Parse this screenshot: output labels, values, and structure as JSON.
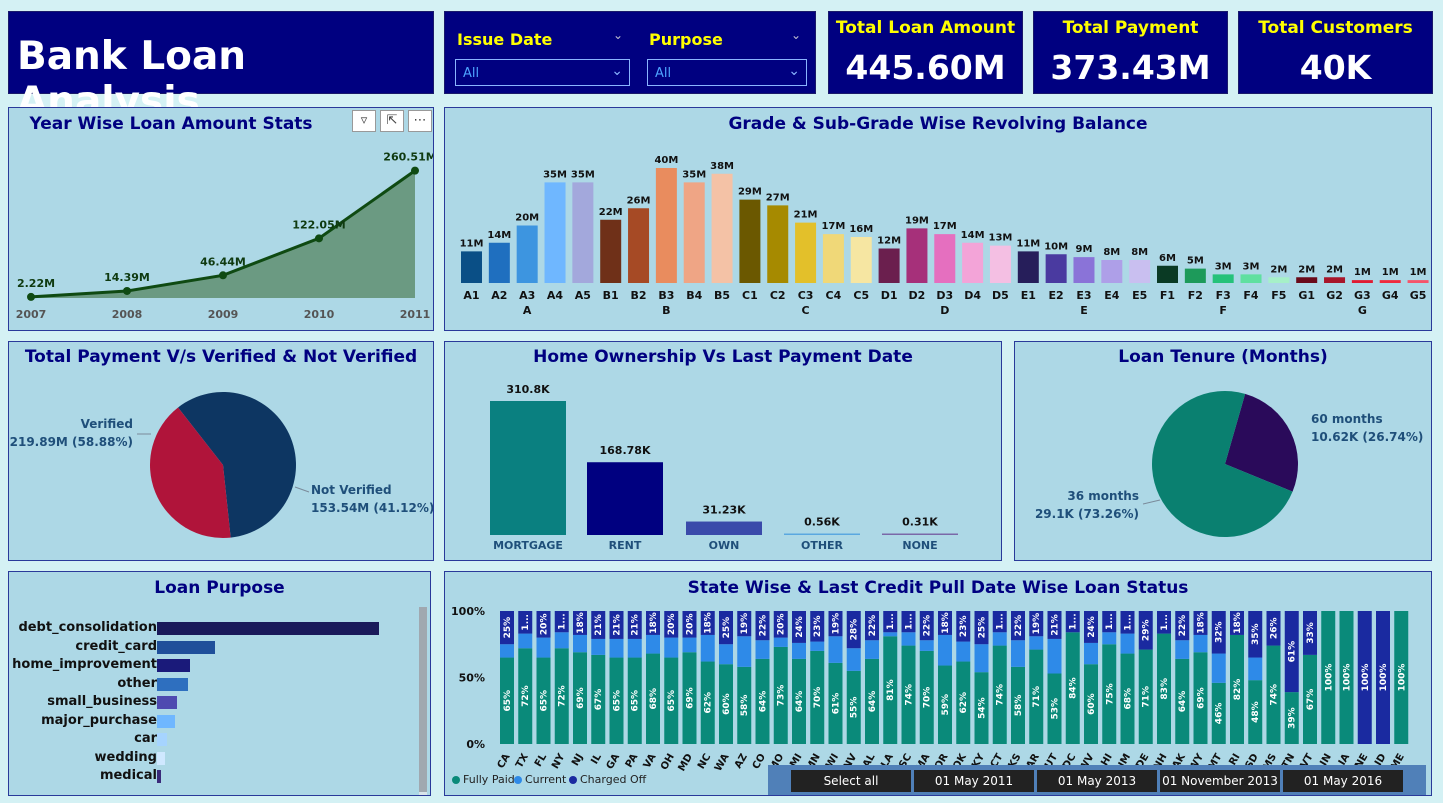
{
  "header": {
    "title": "Bank Loan Analysis"
  },
  "filters": [
    {
      "label": "Issue Date",
      "value": "All"
    },
    {
      "label": "Purpose",
      "value": "All"
    }
  ],
  "kpis": [
    {
      "label": "Total Loan Amount",
      "value": "445.60M"
    },
    {
      "label": "Total Payment",
      "value": "373.43M"
    },
    {
      "label": "Total Customers",
      "value": "40K"
    }
  ],
  "toolbar": {
    "filter_icon": "filter-icon",
    "focus_icon": "focus-mode-icon",
    "more_icon": "more-options-icon"
  },
  "chart_data": [
    {
      "type": "area",
      "title": "Year Wise Loan Amount Stats",
      "x": [
        "2007",
        "2008",
        "2009",
        "2010",
        "2011"
      ],
      "values": [
        2.22,
        14.39,
        46.44,
        122.05,
        260.51
      ],
      "labels": [
        "2.22M",
        "14.39M",
        "46.44M",
        "122.05M",
        "260.51M"
      ],
      "colors": {
        "area": "#6b9a82",
        "line": "#0f4a12"
      }
    },
    {
      "type": "bar",
      "title": "Grade & Sub-Grade Wise Revolving Balance",
      "groups": [
        "A",
        "B",
        "C",
        "D",
        "E",
        "F",
        "G"
      ],
      "categories": [
        "A1",
        "A2",
        "A3",
        "A4",
        "A5",
        "B1",
        "B2",
        "B3",
        "B4",
        "B5",
        "C1",
        "C2",
        "C3",
        "C4",
        "C5",
        "D1",
        "D2",
        "D3",
        "D4",
        "D5",
        "E1",
        "E2",
        "E3",
        "E4",
        "E5",
        "F1",
        "F2",
        "F3",
        "F4",
        "F5",
        "G1",
        "G2",
        "G3",
        "G4",
        "G5"
      ],
      "values": [
        11,
        14,
        20,
        35,
        35,
        22,
        26,
        40,
        35,
        38,
        29,
        27,
        21,
        17,
        16,
        12,
        19,
        17,
        14,
        13,
        11,
        10,
        9,
        8,
        8,
        6,
        5,
        3,
        3,
        2,
        2,
        2,
        1,
        1,
        1
      ],
      "labels": [
        "11M",
        "14M",
        "20M",
        "35M",
        "35M",
        "22M",
        "26M",
        "40M",
        "35M",
        "38M",
        "29M",
        "27M",
        "21M",
        "17M",
        "16M",
        "12M",
        "19M",
        "17M",
        "14M",
        "13M",
        "11M",
        "10M",
        "9M",
        "8M",
        "8M",
        "6M",
        "5M",
        "3M",
        "3M",
        "2M",
        "2M",
        "2M",
        "1M",
        "1M",
        "1M"
      ],
      "colors": [
        "#0a4f86",
        "#1f6fbf",
        "#3d95e0",
        "#6fb7ff",
        "#a3a8dc",
        "#6f3018",
        "#a64a25",
        "#e98c5e",
        "#efa585",
        "#f4c2a6",
        "#6b5800",
        "#a68a00",
        "#e3c02a",
        "#f0d878",
        "#f6e6a2",
        "#6b1f4e",
        "#a6307a",
        "#e56fbf",
        "#f3a4d8",
        "#f4bfe3",
        "#261e5a",
        "#4a3aa0",
        "#8a73d8",
        "#ae9fe8",
        "#c9bff0",
        "#0a3a24",
        "#1d9a5a",
        "#25c27a",
        "#5fe0a0",
        "#a6f0c8",
        "#6a0a1a",
        "#a8162a",
        "#e01c32",
        "#f02a3c",
        "#f6546a"
      ]
    },
    {
      "type": "pie",
      "title": "Total Payment V/s Verified & Not Verified",
      "slices": [
        {
          "name": "Verified",
          "value": 58.88,
          "label": "219.89M (58.88%)",
          "color": "#0d3662"
        },
        {
          "name": "Not Verified",
          "value": 41.12,
          "label": "153.54M (41.12%)",
          "color": "#b0143a"
        }
      ]
    },
    {
      "type": "bar",
      "title": "Home Ownership Vs Last Payment Date",
      "categories": [
        "MORTGAGE",
        "RENT",
        "OWN",
        "OTHER",
        "NONE"
      ],
      "values": [
        310.8,
        168.78,
        31.23,
        0.56,
        0.31
      ],
      "labels": [
        "310.8K",
        "168.78K",
        "31.23K",
        "0.56K",
        "0.31K"
      ],
      "colors": [
        "#0a8080",
        "#000080",
        "#3a4aaa",
        "#5aa8e0",
        "#7a68a8"
      ]
    },
    {
      "type": "pie",
      "title": "Loan Tenure (Months)",
      "slices": [
        {
          "name": "36 months",
          "value": 73.26,
          "label": "29.1K (73.26%)",
          "color": "#0a8070"
        },
        {
          "name": "60 months",
          "value": 26.74,
          "label": "10.62K (26.74%)",
          "color": "#2a0a5a"
        }
      ]
    },
    {
      "type": "bar",
      "title": "Loan Purpose",
      "categories": [
        "debt_consolidation",
        "credit_card",
        "home_improvement",
        "other",
        "small_business",
        "major_purchase",
        "car",
        "wedding",
        "medical"
      ],
      "values": [
        100,
        26,
        15,
        14,
        9,
        8,
        4.5,
        3.5,
        2
      ],
      "colors": [
        "#1a1a5a",
        "#1f4f9a",
        "#1a1a7a",
        "#2e6fbf",
        "#4e4ab0",
        "#6fb7ff",
        "#a6d4ff",
        "#cfe8ff",
        "#3a2a7a"
      ]
    },
    {
      "type": "bar",
      "title": "State Wise & Last Credit Pull Date Wise Loan Status",
      "yticks": [
        "100%",
        "50%",
        "0%"
      ],
      "legend": [
        "Fully Paid",
        "Current",
        "Charged Off"
      ],
      "legend_colors": [
        "#0a8a7a",
        "#2e8ae8",
        "#1a2aa0"
      ],
      "categories": [
        "CA",
        "TX",
        "FL",
        "NY",
        "NJ",
        "IL",
        "GA",
        "PA",
        "VA",
        "OH",
        "MD",
        "NC",
        "WA",
        "AZ",
        "CO",
        "MO",
        "MI",
        "MN",
        "WI",
        "NV",
        "AL",
        "LA",
        "SC",
        "MA",
        "OR",
        "OK",
        "KY",
        "CT",
        "KS",
        "AR",
        "UT",
        "DC",
        "WV",
        "HI",
        "NM",
        "DE",
        "NH",
        "AK",
        "WY",
        "MT",
        "RI",
        "SD",
        "MS",
        "TN",
        "VT",
        "IN",
        "IA",
        "NE",
        "ID",
        "ME"
      ],
      "fully_paid": [
        65,
        72,
        65,
        72,
        69,
        67,
        65,
        65,
        68,
        65,
        69,
        62,
        60,
        58,
        64,
        73,
        64,
        70,
        61,
        55,
        64,
        81,
        74,
        70,
        59,
        62,
        54,
        74,
        58,
        71,
        53,
        84,
        60,
        75,
        68,
        71,
        83,
        64,
        69,
        46,
        82,
        48,
        74,
        39,
        67,
        100,
        100,
        0,
        0,
        100
      ],
      "charged_off": [
        25,
        17,
        20,
        16,
        18,
        21,
        21,
        21,
        18,
        20,
        20,
        18,
        25,
        19,
        22,
        20,
        24,
        23,
        19,
        28,
        22,
        16,
        16,
        22,
        18,
        23,
        25,
        16,
        22,
        19,
        21,
        16,
        24,
        16,
        17,
        29,
        17,
        22,
        18,
        32,
        18,
        35,
        26,
        61,
        33,
        0,
        0,
        100,
        100,
        0
      ],
      "pct_labels": {
        "fully_paid": [
          "65%",
          "72%",
          "65%",
          "72%",
          "69%",
          "67%",
          "65%",
          "65%",
          "68%",
          "65%",
          "69%",
          "62%",
          "60%",
          "58%",
          "64%",
          "73%",
          "64%",
          "70%",
          "61%",
          "55%",
          "64%",
          "81%",
          "74%",
          "70%",
          "59%",
          "62%",
          "54%",
          "74%",
          "58%",
          "71%",
          "53%",
          "84%",
          "60%",
          "75%",
          "68%",
          "71%",
          "83%",
          "64%",
          "69%",
          "46%",
          "82%",
          "48%",
          "74%",
          "39%",
          "67%",
          "100%",
          "100%",
          "",
          "",
          "100%"
        ],
        "charged_off": [
          "25%",
          "1...",
          "20%",
          "1...",
          "18%",
          "21%",
          "21%",
          "21%",
          "18%",
          "20%",
          "20%",
          "18%",
          "25%",
          "19%",
          "22%",
          "20%",
          "24%",
          "23%",
          "19%",
          "28%",
          "22%",
          "1...",
          "1...",
          "22%",
          "18%",
          "23%",
          "25%",
          "1...",
          "22%",
          "19%",
          "21%",
          "1...",
          "24%",
          "1...",
          "1...",
          "29%",
          "1...",
          "22%",
          "18%",
          "32%",
          "18%",
          "35%",
          "26%",
          "61%",
          "33%",
          "",
          "",
          "100%",
          "100%",
          ""
        ]
      }
    }
  ],
  "slicer": {
    "buttons": [
      "Select all",
      "01 May 2011",
      "01 May 2013",
      "01 November 2013",
      "01 May 2016"
    ]
  }
}
